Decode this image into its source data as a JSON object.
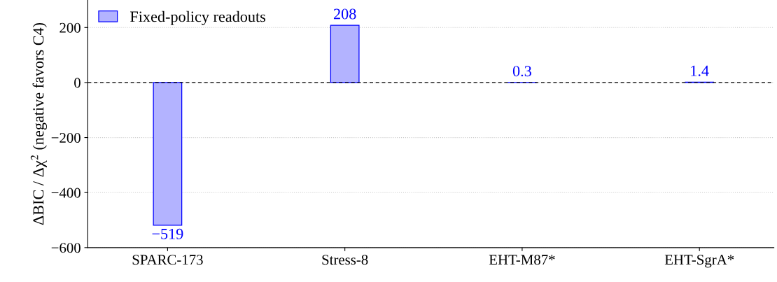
{
  "chart_data": {
    "type": "bar",
    "ylabel": "ΔBIC / Δχ$^{2}$ (negative favors C4)",
    "categories": [
      "SPARC-173",
      "Stress-8",
      "EHT-M87*",
      "EHT-SgrA*"
    ],
    "series": [
      {
        "name": "Fixed-policy readouts",
        "color": "#b3b3ff",
        "values": [
          -519,
          208,
          0.3,
          1.4
        ],
        "value_labels": [
          "−519",
          "208",
          "0.3",
          "1.4"
        ]
      }
    ],
    "ylim": [
      -600,
      300
    ],
    "yticks": [
      -600,
      -400,
      -200,
      0,
      200
    ],
    "ref_lines": [
      {
        "axis": "y",
        "value": 0,
        "color": "#000000",
        "line_style": "dashed"
      }
    ],
    "grid": "y",
    "legend": "top left"
  }
}
